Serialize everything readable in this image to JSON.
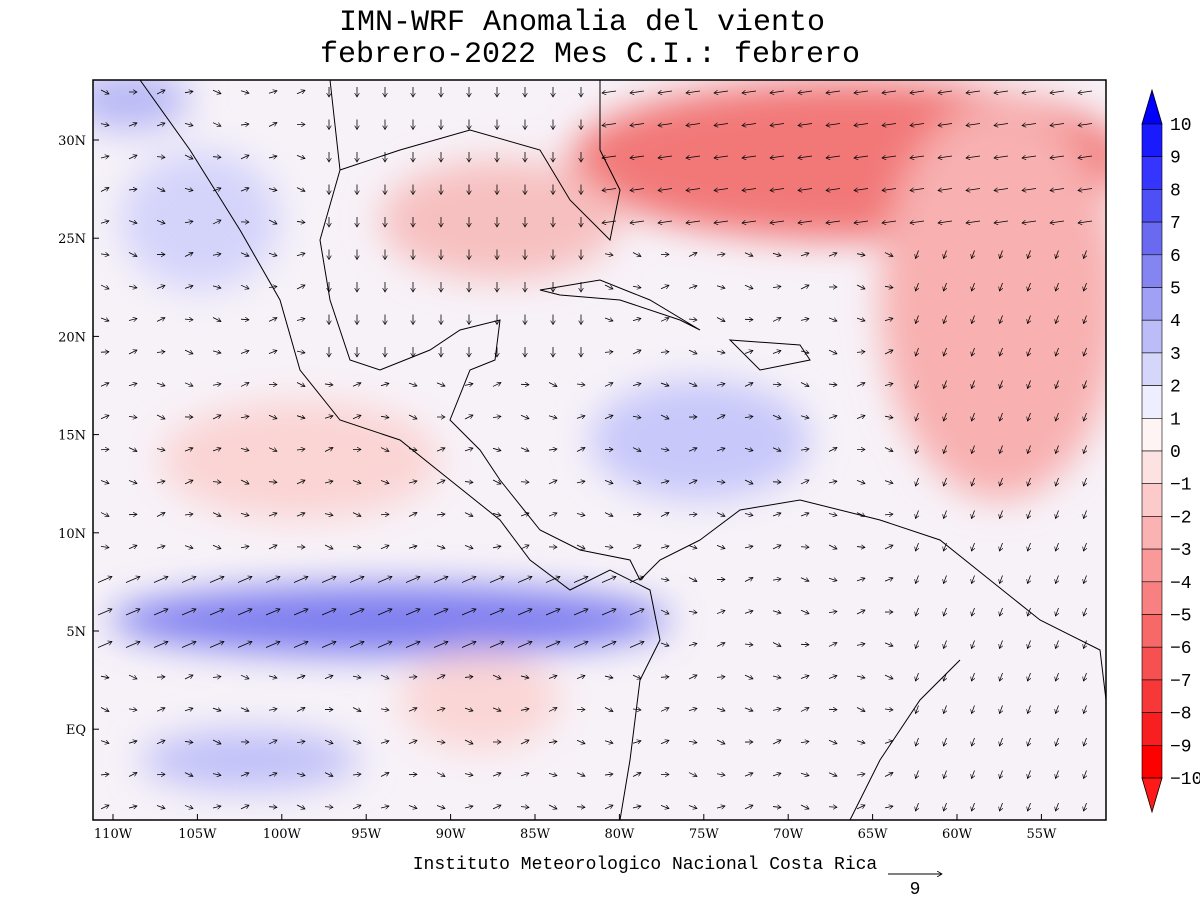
{
  "title": {
    "line1": "IMN-WRF Anomalia del viento",
    "line2": "febrero-2022 Mes C.I.: febrero"
  },
  "map": {
    "lon_labels": [
      "110W",
      "105W",
      "100W",
      "95W",
      "90W",
      "85W",
      "80W",
      "75W",
      "70W",
      "65W",
      "60W",
      "55W"
    ],
    "lat_labels": [
      "30N",
      "25N",
      "20N",
      "15N",
      "10N",
      "5N",
      "EQ"
    ]
  },
  "colorbar": {
    "labels": [
      "10",
      "9",
      "8",
      "7",
      "6",
      "5",
      "4",
      "3",
      "2",
      "1",
      "0",
      "−1",
      "−2",
      "−3",
      "−4",
      "−5",
      "−6",
      "−7",
      "−8",
      "−9",
      "−10"
    ],
    "colors": [
      "#0000ff",
      "#1a1aff",
      "#3535ff",
      "#4f4ff6",
      "#6a6af0",
      "#8585f2",
      "#a0a0f5",
      "#bcbcf8",
      "#d6d6fb",
      "#eeeefe",
      "#fff4f4",
      "#fde2e2",
      "#fccaca",
      "#fbb2b2",
      "#f99999",
      "#f88080",
      "#f76868",
      "#f65050",
      "#f63838",
      "#f71f1f",
      "#ff0000",
      "#ff1a1a"
    ]
  },
  "footer": "Instituto Meteorologico Nacional Costa Rica",
  "vector_scale": "9"
}
